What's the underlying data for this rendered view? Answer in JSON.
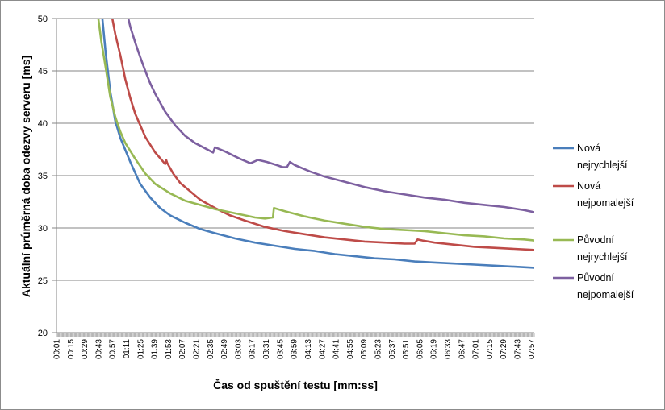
{
  "chart_data": {
    "type": "line",
    "title": "",
    "xlabel": "Čas od spuštění testu [mm:ss]",
    "ylabel": "Aktuální průměrná doba odezvy serveru [ms]",
    "ylim": [
      20,
      50
    ],
    "yticks": [
      20,
      25,
      30,
      35,
      40,
      45,
      50
    ],
    "xlim": [
      1,
      480
    ],
    "xtick_labels": [
      "00:01",
      "00:15",
      "00:29",
      "00:43",
      "00:57",
      "01:11",
      "01:25",
      "01:39",
      "01:53",
      "02:07",
      "02:21",
      "02:35",
      "02:49",
      "03:03",
      "03:17",
      "03:31",
      "03:45",
      "03:59",
      "04:13",
      "04:27",
      "04:41",
      "04:55",
      "05:09",
      "05:23",
      "05:37",
      "05:51",
      "06:05",
      "06:19",
      "06:33",
      "06:47",
      "07:01",
      "07:15",
      "07:29",
      "07:43",
      "07:57"
    ],
    "grid": true,
    "legend_position": "right",
    "series": [
      {
        "name": "Nová nejrychlejší",
        "color": "#4a7ebb",
        "x": [
          47,
          50,
          55,
          60,
          65,
          75,
          85,
          95,
          105,
          115,
          130,
          145,
          160,
          180,
          200,
          220,
          240,
          260,
          280,
          300,
          320,
          340,
          360,
          380,
          400,
          420,
          440,
          460,
          480
        ],
        "y": [
          50,
          47,
          43,
          40.2,
          38.6,
          36.3,
          34.2,
          32.9,
          31.9,
          31.2,
          30.5,
          29.9,
          29.5,
          29.0,
          28.6,
          28.3,
          28.0,
          27.8,
          27.5,
          27.3,
          27.1,
          27.0,
          26.8,
          26.7,
          26.6,
          26.5,
          26.4,
          26.3,
          26.2
        ]
      },
      {
        "name": "Nová nejpomalejší",
        "color": "#be4b48",
        "x": [
          57,
          60,
          65,
          70,
          75,
          80,
          90,
          100,
          110,
          111,
          112,
          118,
          125,
          135,
          145,
          160,
          175,
          190,
          210,
          230,
          250,
          270,
          290,
          310,
          330,
          350,
          360,
          363,
          368,
          380,
          400,
          420,
          440,
          460,
          480
        ],
        "y": [
          50,
          48.5,
          46.5,
          44.2,
          42.4,
          40.9,
          38.7,
          37.2,
          36.1,
          36.5,
          36.2,
          35.2,
          34.3,
          33.5,
          32.7,
          31.9,
          31.2,
          30.7,
          30.1,
          29.7,
          29.4,
          29.1,
          28.9,
          28.7,
          28.6,
          28.5,
          28.5,
          28.9,
          28.8,
          28.6,
          28.4,
          28.2,
          28.1,
          28.0,
          27.9
        ]
      },
      {
        "name": "Původní nejrychlejší",
        "color": "#98b954",
        "x": [
          43,
          46,
          50,
          55,
          60,
          65,
          70,
          80,
          90,
          100,
          115,
          130,
          145,
          160,
          175,
          190,
          200,
          210,
          218,
          219,
          230,
          250,
          270,
          290,
          310,
          330,
          350,
          370,
          390,
          410,
          430,
          450,
          470,
          480
        ],
        "y": [
          50,
          47.8,
          45.5,
          42.5,
          40.6,
          39.2,
          38.1,
          36.6,
          35.2,
          34.2,
          33.3,
          32.6,
          32.2,
          31.8,
          31.5,
          31.2,
          31.0,
          30.9,
          31.0,
          31.9,
          31.6,
          31.1,
          30.7,
          30.4,
          30.1,
          29.9,
          29.8,
          29.7,
          29.5,
          29.3,
          29.2,
          29.0,
          28.9,
          28.8
        ]
      },
      {
        "name": "Původní nejpomalejší",
        "color": "#7d60a0",
        "x": [
          73,
          75,
          80,
          85,
          90,
          95,
          100,
          110,
          120,
          130,
          140,
          150,
          158,
          160,
          170,
          185,
          195,
          196,
          203,
          212,
          222,
          228,
          232,
          235,
          240,
          255,
          270,
          290,
          310,
          330,
          350,
          370,
          390,
          410,
          430,
          450,
          470,
          480
        ],
        "y": [
          50,
          49.2,
          47.7,
          46.3,
          45,
          43.8,
          42.8,
          41.1,
          39.8,
          38.8,
          38.1,
          37.6,
          37.2,
          37.7,
          37.3,
          36.6,
          36.2,
          36.2,
          36.5,
          36.3,
          36.0,
          35.8,
          35.8,
          36.3,
          36.0,
          35.4,
          34.9,
          34.4,
          33.9,
          33.5,
          33.2,
          32.9,
          32.7,
          32.4,
          32.2,
          32.0,
          31.7,
          31.5
        ]
      }
    ]
  }
}
